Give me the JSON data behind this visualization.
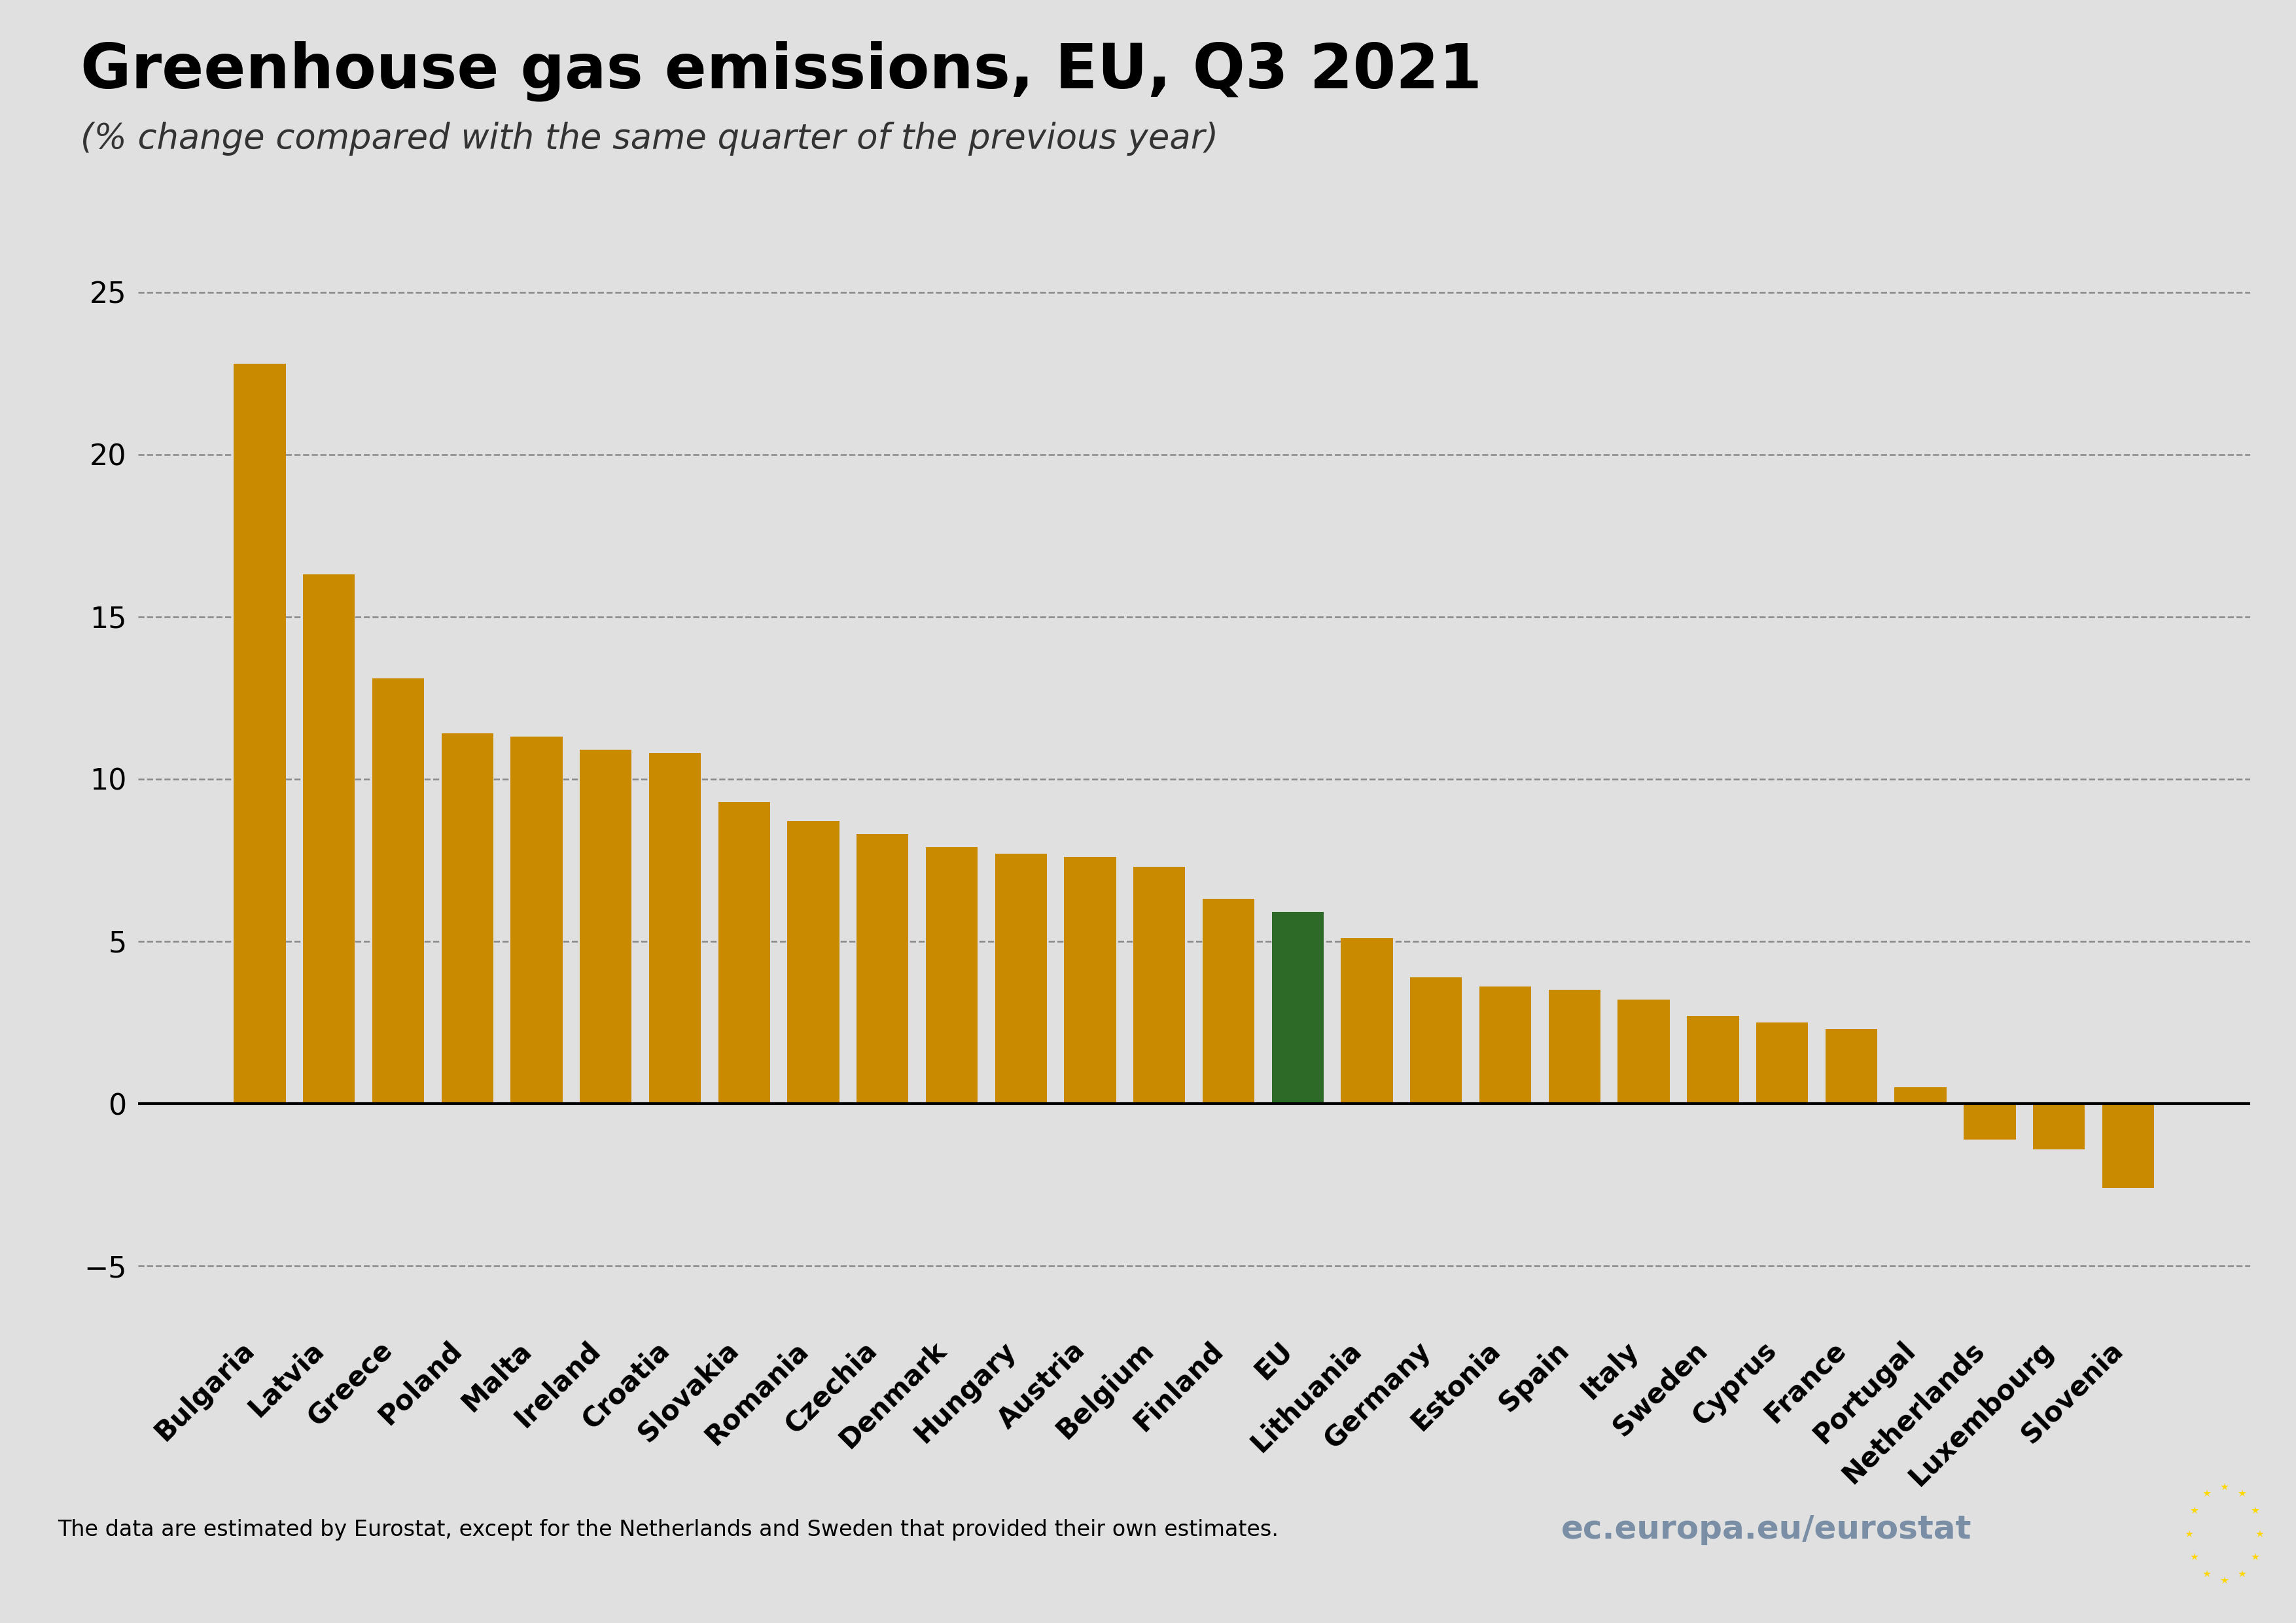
{
  "title": "Greenhouse gas emissions, EU, Q3 2021",
  "subtitle": "(% change compared with the same quarter of the previous year)",
  "categories": [
    "Bulgaria",
    "Latvia",
    "Greece",
    "Poland",
    "Malta",
    "Ireland",
    "Croatia",
    "Slovakia",
    "Romania",
    "Czechia",
    "Denmark",
    "Hungary",
    "Austria",
    "Belgium",
    "Finland",
    "EU",
    "Lithuania",
    "Germany",
    "Estonia",
    "Spain",
    "Italy",
    "Sweden",
    "Cyprus",
    "France",
    "Portugal",
    "Netherlands",
    "Luxembourg",
    "Slovenia"
  ],
  "values": [
    22.8,
    16.3,
    13.1,
    11.4,
    11.3,
    10.9,
    10.8,
    9.3,
    8.7,
    8.3,
    7.9,
    7.7,
    7.6,
    7.3,
    6.3,
    5.9,
    5.1,
    3.9,
    3.6,
    3.5,
    3.2,
    2.7,
    2.5,
    2.3,
    0.5,
    -1.1,
    -1.4,
    -2.6
  ],
  "bar_color_default": "#C98A00",
  "bar_color_eu": "#2D6A27",
  "background_color": "#E0E0E0",
  "chart_bg_color": "#E0E0E0",
  "footer_bg_color": "#FFFFFF",
  "grid_color": "#888888",
  "zero_line_color": "#000000",
  "ylim": [
    -7,
    28
  ],
  "yticks": [
    -5,
    0,
    5,
    10,
    15,
    20,
    25
  ],
  "footer_text": "The data are estimated by Eurostat, except for the Netherlands and Sweden that provided their own estimates.",
  "eurostat_text": "ec.europa.eu/eurostat",
  "title_fontsize": 68,
  "subtitle_fontsize": 38,
  "tick_fontsize": 32,
  "xlabel_fontsize": 30,
  "footer_fontsize": 24,
  "eurostat_fontsize": 36,
  "bar_width": 0.75
}
